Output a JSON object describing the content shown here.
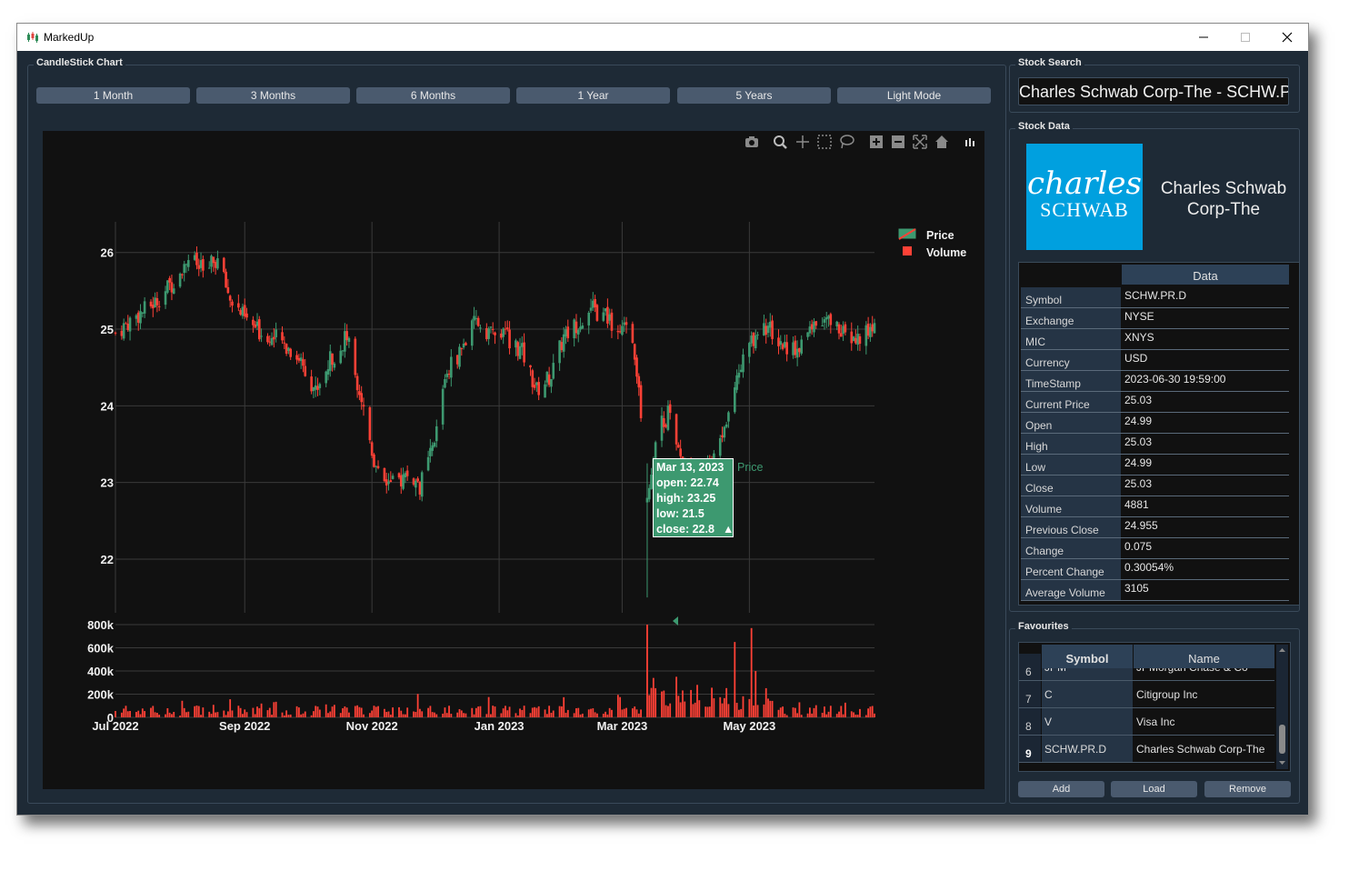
{
  "window": {
    "title": "MarkedUp"
  },
  "chart_panel": {
    "group_title": "CandleStick Chart",
    "range_buttons": [
      "1 Month",
      "3 Months",
      "6 Months",
      "1 Year",
      "5 Years",
      "Light Mode"
    ]
  },
  "toolbar": {
    "icons": [
      "camera-icon",
      "zoom-icon",
      "pan-icon",
      "box-select-icon",
      "lasso-icon",
      "zoom-in-icon",
      "zoom-out-icon",
      "autoscale-icon",
      "reset-axes-icon",
      "plotly-logo-icon"
    ]
  },
  "tooltip": {
    "date": "Mar 13, 2023",
    "open": "open: 22.74",
    "high": "high: 23.25",
    "low": "low: 21.5",
    "close": "close: 22.8",
    "arrow": "▲",
    "trace_name": "Price"
  },
  "chart_data": {
    "type": "candlestick",
    "legend": [
      "Price",
      "Volume"
    ],
    "legend_position": "top-right",
    "x_ticks": [
      "Jul 2022",
      "Sep 2022",
      "Nov 2022",
      "Jan 2023",
      "Mar 2023",
      "May 2023"
    ],
    "price_axis": {
      "ticks": [
        "22",
        "23",
        "24",
        "25",
        "26"
      ],
      "range": [
        21.3,
        26.4
      ]
    },
    "volume_axis": {
      "ticks": [
        "0",
        "200k",
        "400k",
        "600k",
        "800k"
      ],
      "range": [
        0,
        800000
      ]
    },
    "x_range": [
      "2022-07-01",
      "2023-06-30"
    ],
    "up_color": "#3d9970",
    "down_color": "#ff4136",
    "price_anchors": [
      [
        "2022-07-01",
        24.95
      ],
      [
        "2022-07-10",
        25.15
      ],
      [
        "2022-07-20",
        25.35
      ],
      [
        "2022-07-28",
        25.6
      ],
      [
        "2022-08-05",
        25.95
      ],
      [
        "2022-08-12",
        25.75
      ],
      [
        "2022-08-19",
        25.9
      ],
      [
        "2022-08-25",
        25.4
      ],
      [
        "2022-09-02",
        25.1
      ],
      [
        "2022-09-09",
        24.95
      ],
      [
        "2022-09-18",
        24.85
      ],
      [
        "2022-09-28",
        24.6
      ],
      [
        "2022-10-05",
        24.2
      ],
      [
        "2022-10-12",
        24.6
      ],
      [
        "2022-10-20",
        24.9
      ],
      [
        "2022-10-27",
        24.1
      ],
      [
        "2022-11-02",
        23.3
      ],
      [
        "2022-11-10",
        22.95
      ],
      [
        "2022-11-18",
        23.1
      ],
      [
        "2022-11-24",
        22.95
      ],
      [
        "2022-12-01",
        23.5
      ],
      [
        "2022-12-06",
        24.4
      ],
      [
        "2022-12-14",
        24.75
      ],
      [
        "2022-12-21",
        25.1
      ],
      [
        "2022-12-28",
        24.95
      ],
      [
        "2023-01-05",
        24.9
      ],
      [
        "2023-01-12",
        24.7
      ],
      [
        "2023-01-19",
        24.2
      ],
      [
        "2023-01-26",
        24.4
      ],
      [
        "2023-02-01",
        24.9
      ],
      [
        "2023-02-08",
        25.1
      ],
      [
        "2023-02-15",
        25.25
      ],
      [
        "2023-02-22",
        25.15
      ],
      [
        "2023-02-28",
        25.0
      ],
      [
        "2023-03-06",
        24.9
      ],
      [
        "2023-03-09",
        24.3
      ],
      [
        "2023-03-13",
        22.8
      ],
      [
        "2023-03-17",
        23.6
      ],
      [
        "2023-03-23",
        23.9
      ],
      [
        "2023-03-29",
        23.3
      ],
      [
        "2023-04-05",
        23.1
      ],
      [
        "2023-04-12",
        23.2
      ],
      [
        "2023-04-19",
        23.7
      ],
      [
        "2023-04-26",
        24.5
      ],
      [
        "2023-05-03",
        24.9
      ],
      [
        "2023-05-10",
        25.05
      ],
      [
        "2023-05-17",
        24.8
      ],
      [
        "2023-05-24",
        24.75
      ],
      [
        "2023-05-31",
        25.0
      ],
      [
        "2023-06-07",
        25.1
      ],
      [
        "2023-06-14",
        25.0
      ],
      [
        "2023-06-21",
        24.85
      ],
      [
        "2023-06-30",
        25.03
      ]
    ],
    "volume_spikes": [
      [
        "2023-03-13",
        800000
      ],
      [
        "2023-03-16",
        340000
      ],
      [
        "2023-03-27",
        350000
      ],
      [
        "2023-04-06",
        280000
      ],
      [
        "2023-04-24",
        650000
      ],
      [
        "2023-05-02",
        770000
      ],
      [
        "2023-05-04",
        400000
      ]
    ]
  },
  "stock_search": {
    "group_title": "Stock Search",
    "value": "Charles Schwab Corp-The - SCHW.PR.D"
  },
  "stock_data": {
    "group_title": "Stock Data",
    "logo": {
      "line1": "charles",
      "line2": "SCHWAB"
    },
    "company_line1": "Charles Schwab",
    "company_line2": "Corp-The",
    "column_header": "Data",
    "rows": [
      {
        "key": "Symbol",
        "value": "SCHW.PR.D"
      },
      {
        "key": "Exchange",
        "value": "NYSE"
      },
      {
        "key": "MIC",
        "value": "XNYS"
      },
      {
        "key": "Currency",
        "value": "USD"
      },
      {
        "key": "TimeStamp",
        "value": "2023-06-30 19:59:00"
      },
      {
        "key": "Current Price",
        "value": "25.03"
      },
      {
        "key": "Open",
        "value": "24.99"
      },
      {
        "key": "High",
        "value": "25.03"
      },
      {
        "key": "Low",
        "value": "24.99"
      },
      {
        "key": "Close",
        "value": "25.03"
      },
      {
        "key": "Volume",
        "value": "4881"
      },
      {
        "key": "Previous Close",
        "value": "24.955"
      },
      {
        "key": "Change",
        "value": "0.075"
      },
      {
        "key": "Percent Change",
        "value": "0.30054%"
      },
      {
        "key": "Average Volume",
        "value": "3105"
      }
    ]
  },
  "favourites": {
    "group_title": "Favourites",
    "headers": [
      "Symbol",
      "Name"
    ],
    "rows": [
      {
        "num": "6",
        "symbol": "JPM",
        "name": "JPMorgan Chase & Co"
      },
      {
        "num": "7",
        "symbol": "C",
        "name": "Citigroup Inc"
      },
      {
        "num": "8",
        "symbol": "V",
        "name": "Visa Inc"
      },
      {
        "num": "9",
        "symbol": "SCHW.PR.D",
        "name": "Charles Schwab Corp-The"
      }
    ],
    "buttons": {
      "add": "Add",
      "load": "Load",
      "remove": "Remove"
    }
  }
}
